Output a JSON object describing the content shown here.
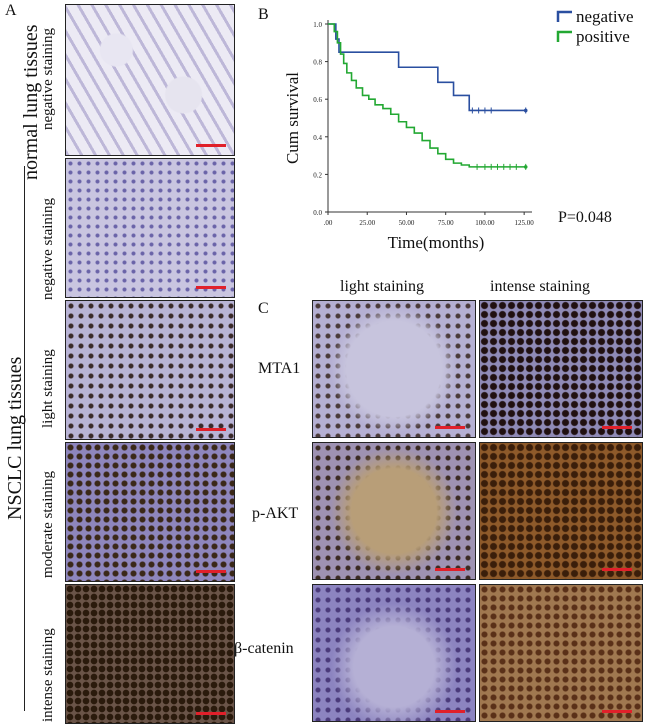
{
  "panels": {
    "a": "A",
    "b": "B",
    "c": "C"
  },
  "panel_a": {
    "group_normal": "normal lung tissues",
    "group_nsclc": "NSCLC lung  tissues",
    "rows": [
      "negative staining",
      "negative staining",
      "light staining",
      "moderate staining",
      "intense staining"
    ]
  },
  "panel_c": {
    "columns": [
      "light staining",
      "intense staining"
    ],
    "rows": [
      "MTA1",
      "p-AKT",
      "β-catenin"
    ]
  },
  "chart_data": {
    "type": "line",
    "step": true,
    "xlabel": "Time(months)",
    "ylabel": "Cum survival",
    "xlim": [
      0,
      130
    ],
    "ylim": [
      0,
      1.0
    ],
    "xticks": [
      ".00",
      "25.00",
      "50.00",
      "75.00",
      "100.00",
      "125.00"
    ],
    "xtick_values": [
      0,
      25,
      50,
      75,
      100,
      125
    ],
    "yticks": [
      "0.0",
      "0.2",
      "0.4",
      "0.6",
      "0.8",
      "1.0"
    ],
    "ytick_values": [
      0.0,
      0.2,
      0.4,
      0.6,
      0.8,
      1.0
    ],
    "annotation": "P=0.048",
    "legend_position": "top-right",
    "series": [
      {
        "name": "negative",
        "color": "#2a4fa0",
        "x": [
          0,
          3,
          5,
          7,
          30,
          30,
          45,
          45,
          70,
          70,
          80,
          80,
          90,
          90,
          126
        ],
        "y": [
          1.0,
          1.0,
          0.92,
          0.85,
          0.85,
          0.85,
          0.85,
          0.77,
          0.77,
          0.69,
          0.69,
          0.62,
          0.62,
          0.54,
          0.54
        ],
        "censored_x": [
          92,
          96,
          100,
          104,
          126
        ]
      },
      {
        "name": "positive",
        "color": "#22a832",
        "x": [
          0,
          3,
          4,
          6,
          8,
          10,
          12,
          15,
          18,
          22,
          26,
          30,
          35,
          40,
          45,
          50,
          55,
          60,
          65,
          70,
          75,
          80,
          85,
          90,
          126
        ],
        "y": [
          1.0,
          1.0,
          0.96,
          0.9,
          0.84,
          0.79,
          0.74,
          0.7,
          0.66,
          0.62,
          0.6,
          0.57,
          0.55,
          0.52,
          0.48,
          0.45,
          0.42,
          0.38,
          0.34,
          0.31,
          0.28,
          0.26,
          0.25,
          0.24,
          0.24
        ],
        "censored_x": [
          95,
          100,
          104,
          108,
          112,
          116,
          120,
          126
        ]
      }
    ]
  }
}
